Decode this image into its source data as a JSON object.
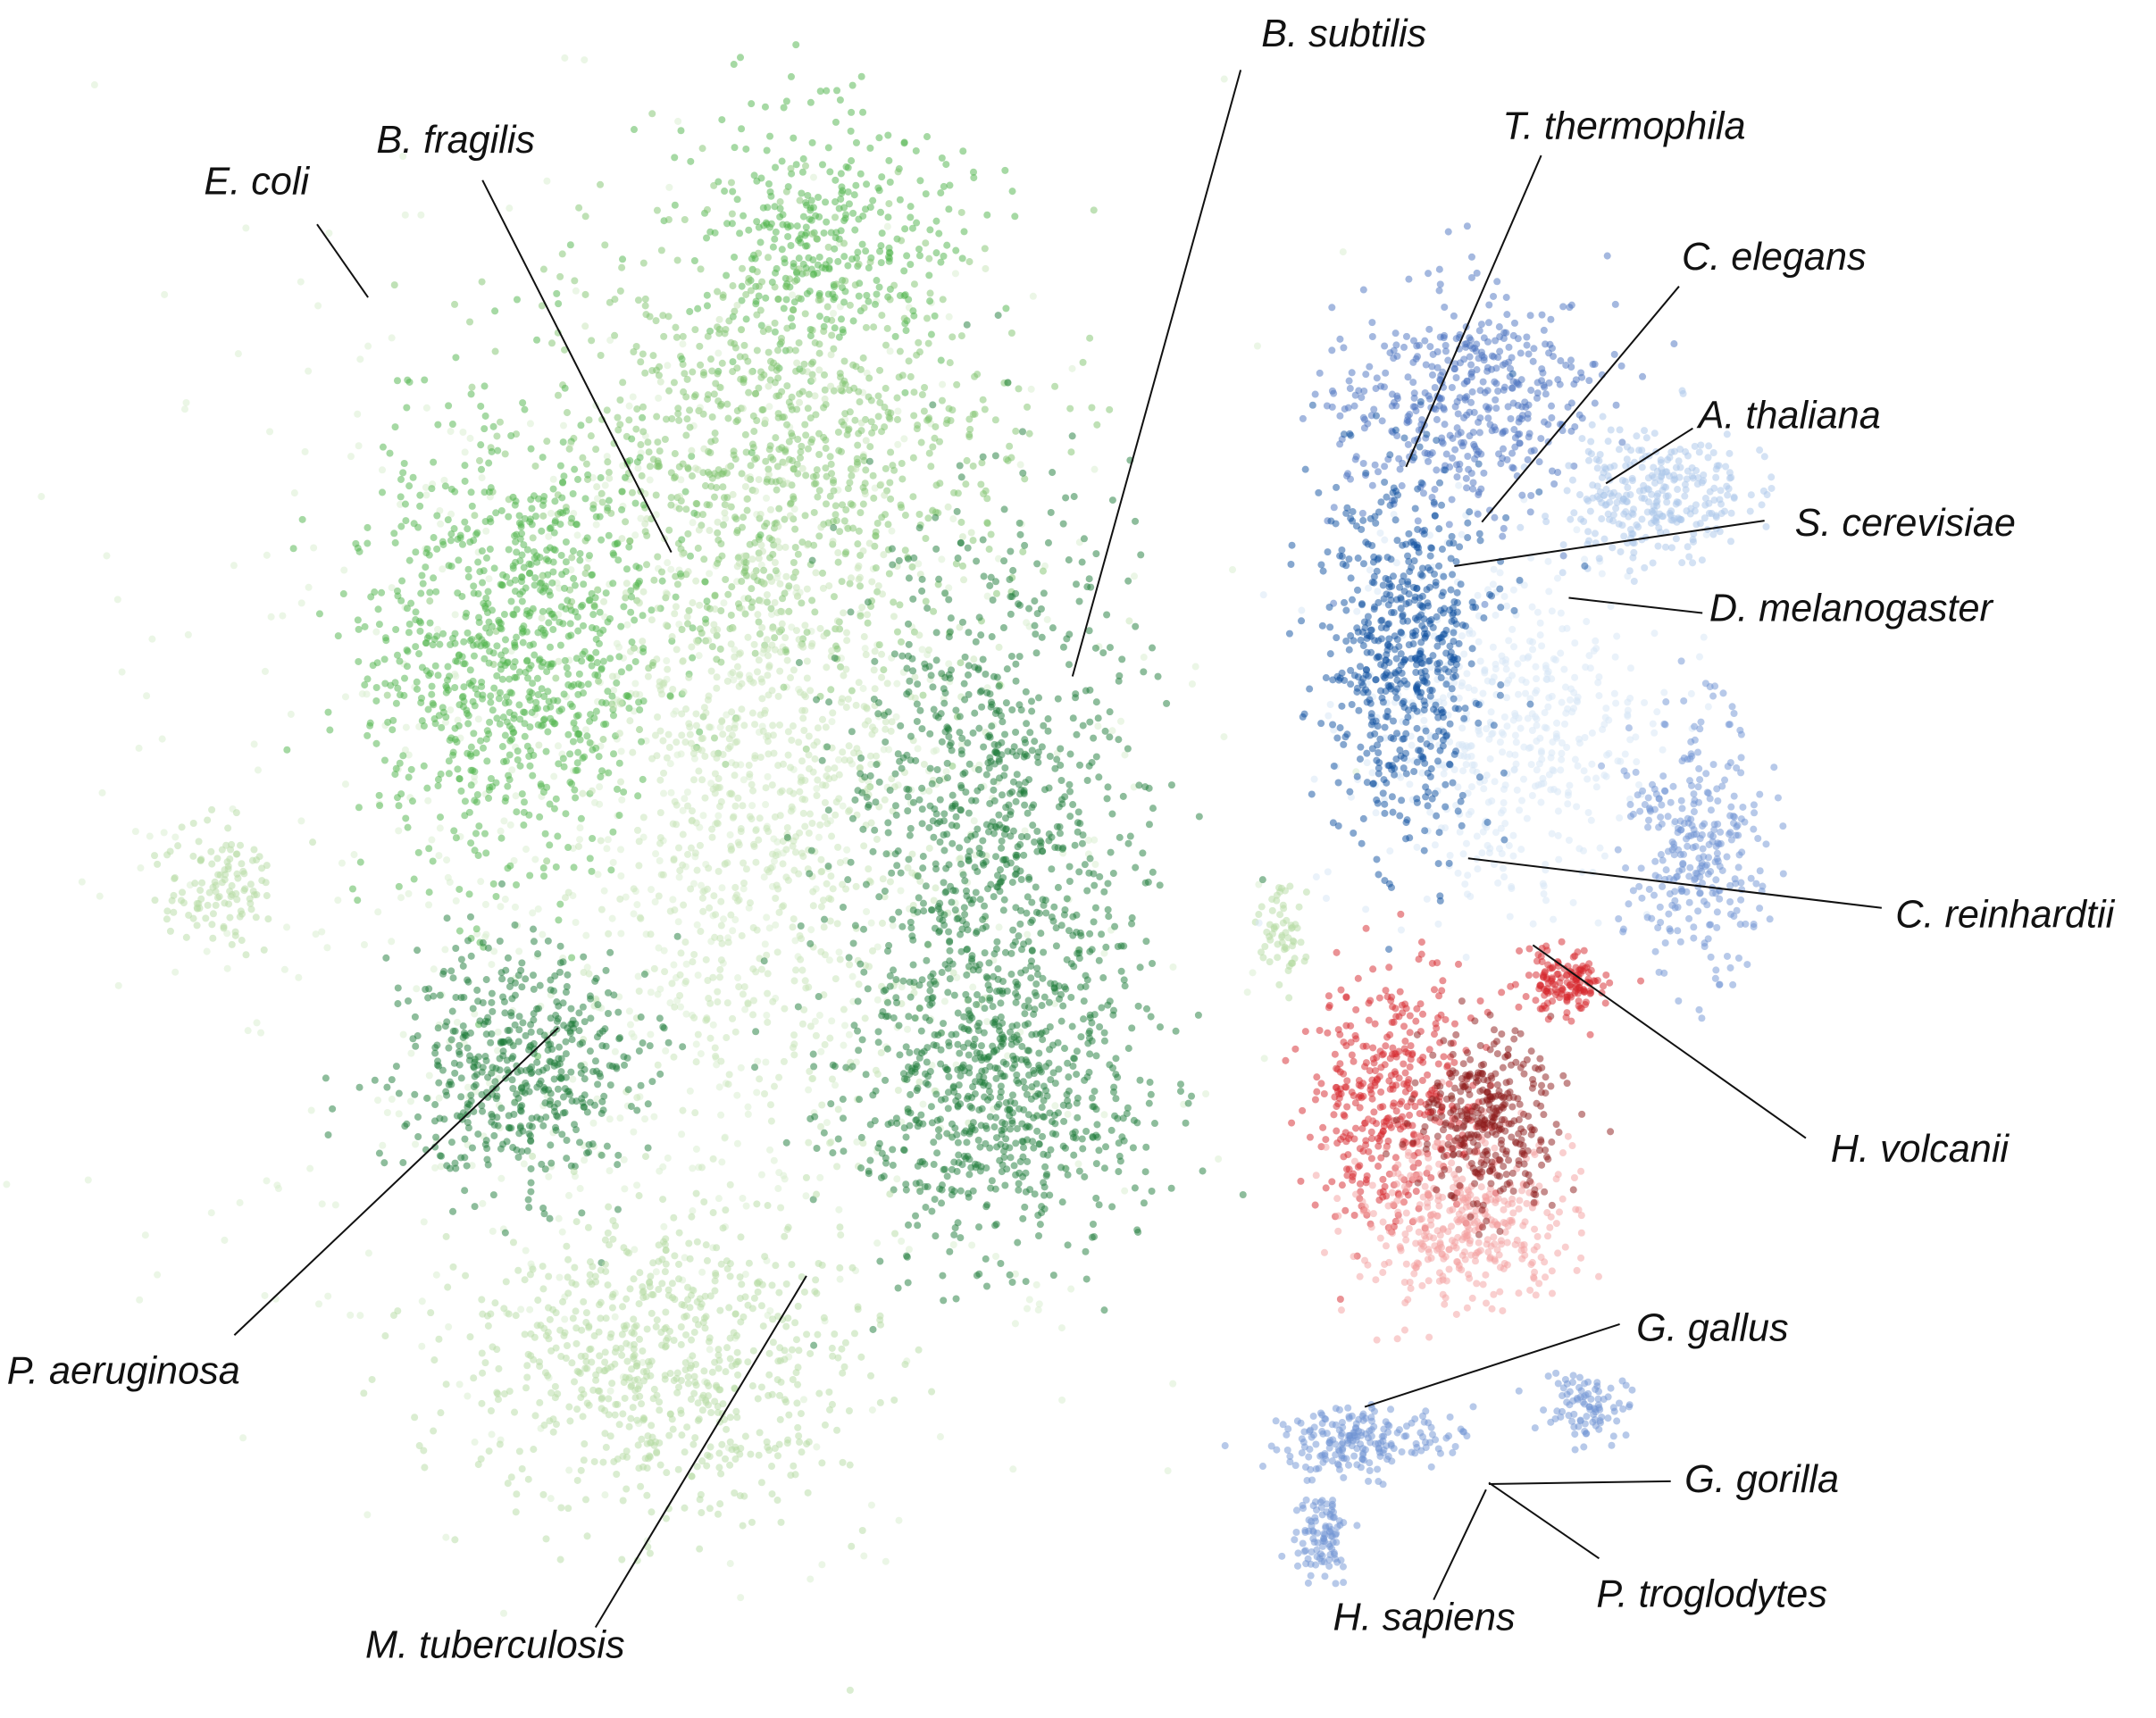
{
  "labels": [
    "E. coli",
    "B. fragilis",
    "B. subtilis",
    "T. thermophila",
    "C. elegans",
    "A. thaliana",
    "S. cerevisiae",
    "D. melanogaster",
    "C. reinhardtii",
    "H. volcanii",
    "P. aeruginosa",
    "M. tuberculosis",
    "G. gallus",
    "G. gorilla",
    "P. troglodytes",
    "H. sapiens"
  ]
}
